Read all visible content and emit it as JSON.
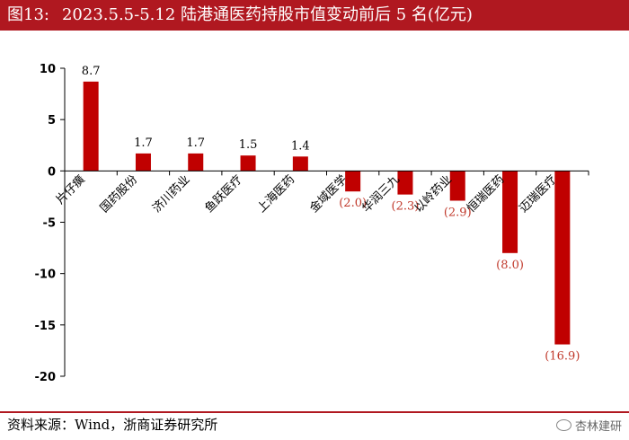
{
  "header": {
    "figure_no": "图13:",
    "title": "2023.5.5-5.12 陆港通医药持股市值变动前后 5 名(亿元)"
  },
  "footer": {
    "source": "资料来源：Wind，浙商证券研究所",
    "watermark": "杏林建研"
  },
  "colors": {
    "accent": "#b01820",
    "bar": "#c00000",
    "negative_label": "#c0392b"
  },
  "chart_data": {
    "type": "bar",
    "title": "2023.5.5-5.12 陆港通医药持股市值变动前后 5 名(亿元)",
    "xlabel": "",
    "ylabel": "",
    "categories": [
      "片仔癀",
      "国药股份",
      "济川药业",
      "鱼跃医疗",
      "上海医药",
      "金域医学",
      "华润三九",
      "以岭药业",
      "恒瑞医药",
      "迈瑞医疗"
    ],
    "values": [
      8.7,
      1.7,
      1.7,
      1.5,
      1.4,
      -2.0,
      -2.3,
      -2.9,
      -8.0,
      -16.9
    ],
    "data_labels": [
      "8.7",
      "1.7",
      "1.7",
      "1.5",
      "1.4",
      "(2.0)",
      "(2.3)",
      "(2.9)",
      "(8.0)",
      "(16.9)"
    ],
    "ylim": [
      -20,
      10
    ],
    "yticks": [
      10,
      5,
      0,
      -5,
      -10,
      -15,
      -20
    ],
    "grid": false,
    "legend": "none"
  }
}
